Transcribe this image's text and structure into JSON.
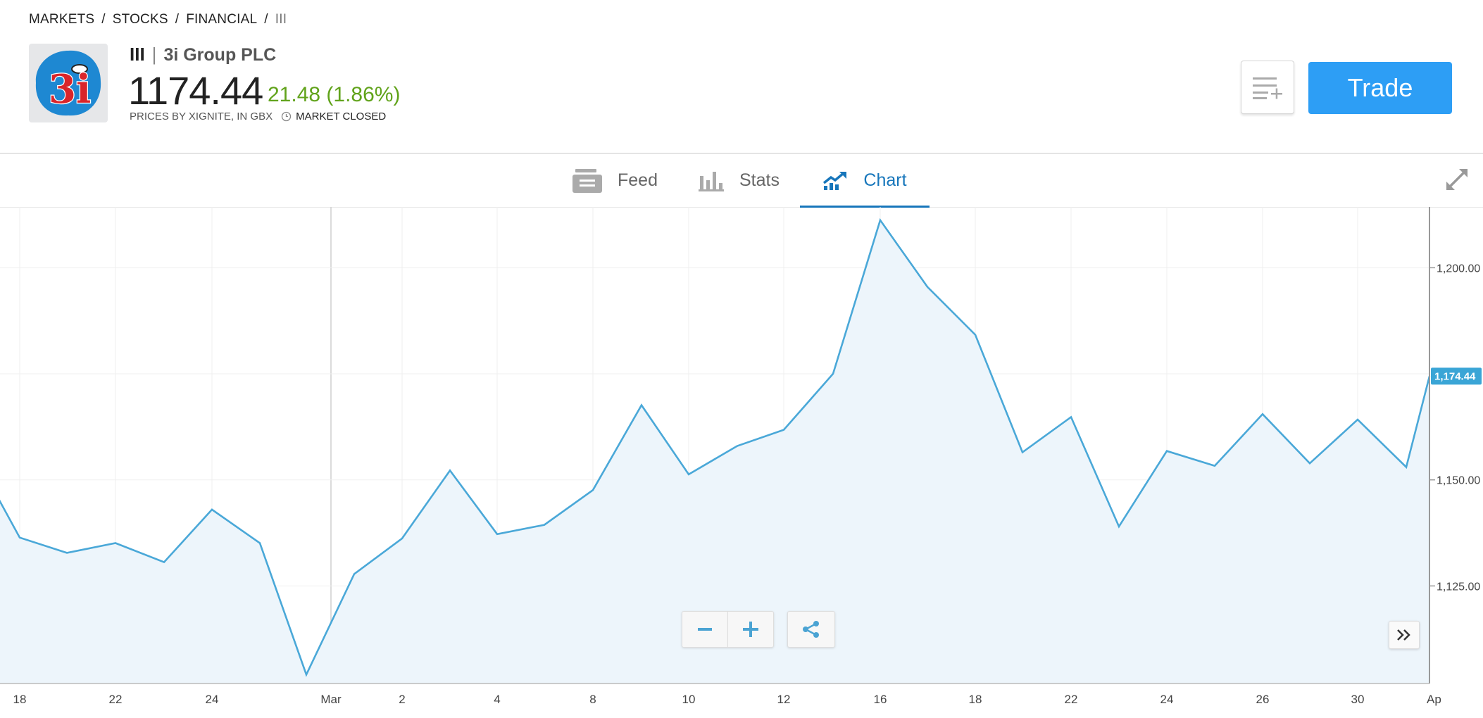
{
  "breadcrumb": [
    "MARKETS",
    "STOCKS",
    "FINANCIAL",
    "III"
  ],
  "instrument": {
    "ticker": "III",
    "name": "3i Group PLC",
    "price": "1174.44",
    "change": "21.48 (1.86%)",
    "prices_note": "PRICES BY XIGNITE, IN GBX",
    "market_status": "MARKET CLOSED",
    "logo_text": "3i"
  },
  "actions": {
    "trade_label": "Trade",
    "watchlist_icon": "add-to-list-icon"
  },
  "tabs": [
    {
      "label": "Feed",
      "icon": "feed-icon",
      "active": false
    },
    {
      "label": "Stats",
      "icon": "stats-icon",
      "active": false
    },
    {
      "label": "Chart",
      "icon": "chart-icon",
      "active": true
    }
  ],
  "colors": {
    "line": "#4aa8d8",
    "fill": "#edf5fb",
    "trade": "#2d9ef5",
    "positive": "#61a31b",
    "active_tab": "#1776bb"
  },
  "chart_data": {
    "type": "area",
    "x": [
      "Feb 17",
      "Feb 18",
      "Feb 20",
      "Feb 22",
      "Feb 23",
      "Feb 24",
      "Feb 25",
      "Feb 28",
      "Mar 1",
      "Mar 2",
      "Mar 3",
      "Mar 4",
      "Mar 6",
      "Mar 8",
      "Mar 9",
      "Mar 10",
      "Mar 11",
      "Mar 12",
      "Mar 14",
      "Mar 16",
      "Mar 17",
      "Mar 18",
      "Mar 20",
      "Mar 22",
      "Mar 23",
      "Mar 24",
      "Mar 25",
      "Mar 26",
      "Mar 28",
      "Mar 30",
      "Mar 31",
      "Apr 1"
    ],
    "values": [
      1145.5,
      1136.4,
      1132.8,
      1135.1,
      1130.6,
      1143.0,
      1135.1,
      1104.1,
      1127.8,
      1136.2,
      1152.2,
      1137.2,
      1139.4,
      1147.6,
      1167.6,
      1151.3,
      1158.0,
      1161.8,
      1175.0,
      1211.2,
      1195.5,
      1184.2,
      1156.5,
      1164.8,
      1139.0,
      1156.8,
      1153.3,
      1165.5,
      1153.9,
      1164.2,
      1153.0,
      1174.44
    ],
    "x_ticks": [
      "18",
      "22",
      "24",
      "Mar",
      "2",
      "4",
      "8",
      "10",
      "12",
      "16",
      "18",
      "22",
      "24",
      "26",
      "30",
      "Ap"
    ],
    "y_ticks": [
      "1,125.00",
      "1,150.00",
      "1,200.00"
    ],
    "ylim": [
      1102,
      1213
    ],
    "current_label": "1,174.44",
    "grid": true
  }
}
